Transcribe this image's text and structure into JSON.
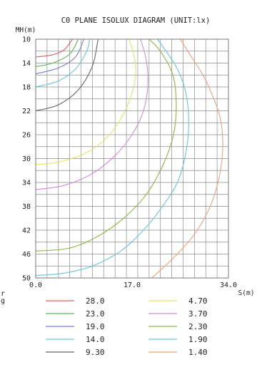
{
  "chart_data": {
    "type": "line",
    "title": "C0 PLANE ISOLUX DIAGRAM (UNIT:lx)",
    "xlabel": "S(m)",
    "ylabel": "MH(m)",
    "xlim": [
      0,
      34
    ],
    "ylim": [
      10,
      50
    ],
    "y_inverted": true,
    "grid": true,
    "x_tick_labels": [
      "0.0",
      "17.0",
      "34.0"
    ],
    "y_tick_labels": [
      "10",
      "14",
      "18",
      "22",
      "26",
      "30",
      "34",
      "38",
      "42",
      "46",
      "50"
    ],
    "legend_position": "bottom",
    "side_labels": [
      "r",
      "g"
    ],
    "series": [
      {
        "name": "28.0",
        "color": "#e06060",
        "points": [
          [
            0,
            13.0
          ],
          [
            3,
            12.6
          ],
          [
            5,
            11.8
          ],
          [
            6.5,
            10.0
          ]
        ]
      },
      {
        "name": "23.0",
        "color": "#5cb85c",
        "points": [
          [
            0,
            14.6
          ],
          [
            3,
            14.0
          ],
          [
            6,
            12.5
          ],
          [
            7.5,
            10.0
          ]
        ]
      },
      {
        "name": "19.0",
        "color": "#7b7bd6",
        "points": [
          [
            0,
            15.8
          ],
          [
            4,
            14.8
          ],
          [
            7,
            13.0
          ],
          [
            8.5,
            10.0
          ]
        ]
      },
      {
        "name": "14.0",
        "color": "#66c8d8",
        "points": [
          [
            0,
            18.0
          ],
          [
            4,
            17.0
          ],
          [
            7,
            15.0
          ],
          [
            9,
            12.0
          ],
          [
            9.5,
            10.0
          ]
        ]
      },
      {
        "name": "9.30",
        "color": "#666666",
        "points": [
          [
            0,
            22.0
          ],
          [
            4,
            21.0
          ],
          [
            7.5,
            18.5
          ],
          [
            10,
            14.5
          ],
          [
            11,
            10.0
          ]
        ]
      },
      {
        "name": "4.70",
        "color": "#e3e36a",
        "points": [
          [
            0,
            31.0
          ],
          [
            4,
            30.6
          ],
          [
            9,
            29.0
          ],
          [
            13,
            26.0
          ],
          [
            16,
            21.5
          ],
          [
            17.5,
            17.0
          ],
          [
            17.5,
            13.5
          ],
          [
            16.5,
            10.0
          ]
        ]
      },
      {
        "name": "3.70",
        "color": "#d68ad6",
        "points": [
          [
            0,
            35.2
          ],
          [
            5,
            34.5
          ],
          [
            10,
            32.5
          ],
          [
            14,
            29.5
          ],
          [
            17,
            26.0
          ],
          [
            19,
            22.0
          ],
          [
            19.8,
            17.5
          ],
          [
            19.5,
            13.5
          ],
          [
            18.5,
            10.0
          ]
        ]
      },
      {
        "name": "2.30",
        "color": "#8db83c",
        "points": [
          [
            0,
            45.5
          ],
          [
            6,
            45.0
          ],
          [
            11,
            43.0
          ],
          [
            15.5,
            40.0
          ],
          [
            19.5,
            36.0
          ],
          [
            22.5,
            31.0
          ],
          [
            24.3,
            26.0
          ],
          [
            24.8,
            21.0
          ],
          [
            24.2,
            16.0
          ],
          [
            22,
            12.0
          ],
          [
            20,
            10.0
          ]
        ]
      },
      {
        "name": "1.90",
        "color": "#66c8d8",
        "points": [
          [
            0,
            49.6
          ],
          [
            5,
            49.2
          ],
          [
            10,
            48.0
          ],
          [
            15,
            45.5
          ],
          [
            19,
            42.0
          ],
          [
            22,
            38.5
          ],
          [
            25,
            34.0
          ],
          [
            26.5,
            29.0
          ],
          [
            27,
            24.0
          ],
          [
            26.5,
            19.0
          ],
          [
            25,
            15.0
          ],
          [
            23,
            12.0
          ],
          [
            21.5,
            10.0
          ]
        ]
      },
      {
        "name": "1.40",
        "color": "#f2a07a",
        "points": [
          [
            20.5,
            50.0
          ],
          [
            25,
            46.0
          ],
          [
            28.5,
            42.0
          ],
          [
            31,
            37.5
          ],
          [
            32.5,
            32.5
          ],
          [
            33,
            27.5
          ],
          [
            32.5,
            23.0
          ],
          [
            31,
            19.0
          ],
          [
            29.5,
            16.0
          ],
          [
            27.5,
            13.0
          ],
          [
            25.5,
            10.0
          ]
        ]
      }
    ]
  }
}
